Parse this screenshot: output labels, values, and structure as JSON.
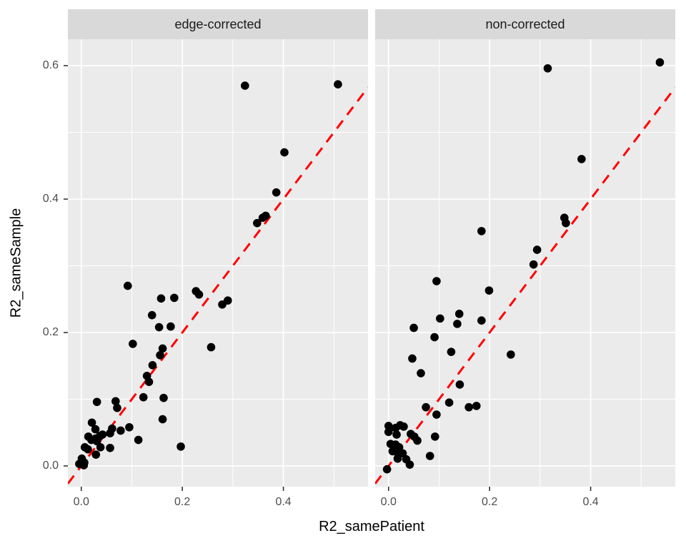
{
  "chart_data": {
    "type": "scatter",
    "facets": [
      {
        "label": "edge-corrected",
        "points": [
          [
            0.005,
            0.001
          ],
          [
            -0.004,
            0.003
          ],
          [
            0.006,
            0.005
          ],
          [
            0.001,
            0.011
          ],
          [
            0.007,
            0.028
          ],
          [
            0.013,
            0.025
          ],
          [
            0.029,
            0.017
          ],
          [
            0.021,
            0.065
          ],
          [
            0.028,
            0.055
          ],
          [
            0.014,
            0.044
          ],
          [
            0.02,
            0.039
          ],
          [
            0.028,
            0.041
          ],
          [
            0.031,
            0.037
          ],
          [
            0.037,
            0.045
          ],
          [
            0.042,
            0.047
          ],
          [
            0.038,
            0.028
          ],
          [
            0.057,
            0.027
          ],
          [
            0.057,
            0.049
          ],
          [
            0.061,
            0.056
          ],
          [
            0.078,
            0.053
          ],
          [
            0.095,
            0.058
          ],
          [
            0.113,
            0.039
          ],
          [
            0.031,
            0.096
          ],
          [
            0.068,
            0.097
          ],
          [
            0.071,
            0.087
          ],
          [
            0.123,
            0.103
          ],
          [
            0.163,
            0.102
          ],
          [
            0.161,
            0.07
          ],
          [
            0.197,
            0.029
          ],
          [
            0.102,
            0.183
          ],
          [
            0.092,
            0.27
          ],
          [
            0.14,
            0.226
          ],
          [
            0.158,
            0.251
          ],
          [
            0.184,
            0.252
          ],
          [
            0.154,
            0.208
          ],
          [
            0.177,
            0.209
          ],
          [
            0.161,
            0.176
          ],
          [
            0.156,
            0.166
          ],
          [
            0.141,
            0.151
          ],
          [
            0.13,
            0.135
          ],
          [
            0.134,
            0.126
          ],
          [
            0.227,
            0.262
          ],
          [
            0.233,
            0.257
          ],
          [
            0.279,
            0.242
          ],
          [
            0.29,
            0.248
          ],
          [
            0.257,
            0.178
          ],
          [
            0.348,
            0.364
          ],
          [
            0.359,
            0.372
          ],
          [
            0.365,
            0.375
          ],
          [
            0.386,
            0.41
          ],
          [
            0.402,
            0.47
          ],
          [
            0.324,
            0.57
          ],
          [
            0.508,
            0.572
          ]
        ]
      },
      {
        "label": "non-corrected",
        "points": [
          [
            -0.003,
            -0.005
          ],
          [
            0.042,
            0.002
          ],
          [
            0.018,
            0.011
          ],
          [
            0.035,
            0.01
          ],
          [
            0.008,
            0.022
          ],
          [
            0.016,
            0.021
          ],
          [
            0.028,
            0.019
          ],
          [
            0.004,
            0.033
          ],
          [
            0.014,
            0.032
          ],
          [
            0.021,
            0.028
          ],
          [
            0.082,
            0.015
          ],
          [
            0.057,
            0.038
          ],
          [
            0.092,
            0.044
          ],
          [
            0.044,
            0.048
          ],
          [
            0.051,
            0.044
          ],
          [
            0.016,
            0.047
          ],
          [
            0.0,
            0.051
          ],
          [
            0.0,
            0.06
          ],
          [
            0.023,
            0.061
          ],
          [
            0.014,
            0.057
          ],
          [
            0.03,
            0.059
          ],
          [
            0.074,
            0.088
          ],
          [
            0.095,
            0.077
          ],
          [
            0.12,
            0.095
          ],
          [
            0.159,
            0.088
          ],
          [
            0.174,
            0.09
          ],
          [
            0.064,
            0.139
          ],
          [
            0.141,
            0.122
          ],
          [
            0.047,
            0.161
          ],
          [
            0.124,
            0.171
          ],
          [
            0.242,
            0.167
          ],
          [
            0.091,
            0.193
          ],
          [
            0.05,
            0.207
          ],
          [
            0.102,
            0.221
          ],
          [
            0.14,
            0.228
          ],
          [
            0.136,
            0.213
          ],
          [
            0.184,
            0.218
          ],
          [
            0.199,
            0.263
          ],
          [
            0.095,
            0.277
          ],
          [
            0.287,
            0.302
          ],
          [
            0.294,
            0.324
          ],
          [
            0.184,
            0.352
          ],
          [
            0.348,
            0.372
          ],
          [
            0.351,
            0.364
          ],
          [
            0.382,
            0.46
          ],
          [
            0.315,
            0.596
          ],
          [
            0.537,
            0.605
          ]
        ]
      }
    ],
    "xlabel": "R2_samePatient",
    "ylabel": "R2_sameSample",
    "x_ticks": {
      "values": [
        0.0,
        0.2,
        0.4
      ],
      "labels": [
        "0.0",
        "0.2",
        "0.4"
      ]
    },
    "y_ticks": {
      "values": [
        0.0,
        0.2,
        0.4,
        0.6
      ],
      "labels": [
        "0.0",
        "0.2",
        "0.4",
        "0.6"
      ]
    },
    "x_minor": [
      0.1,
      0.3,
      0.5
    ],
    "y_minor": [
      0.1,
      0.3,
      0.5
    ],
    "xlim": [
      -0.0265,
      0.5675
    ],
    "ylim": [
      -0.031,
      0.6396
    ],
    "reference_line": {
      "slope": 1,
      "intercept": 0,
      "color": "#ff0000",
      "style": "dashed"
    },
    "style": {
      "point_color": "#000000",
      "panel_bg": "#ebebeb",
      "strip_bg": "#d9d9d9",
      "grid_color": "#ffffff",
      "tick_color": "#333333",
      "tick_label_color": "#4d4d4d"
    },
    "legend": "none",
    "grid": "on"
  }
}
